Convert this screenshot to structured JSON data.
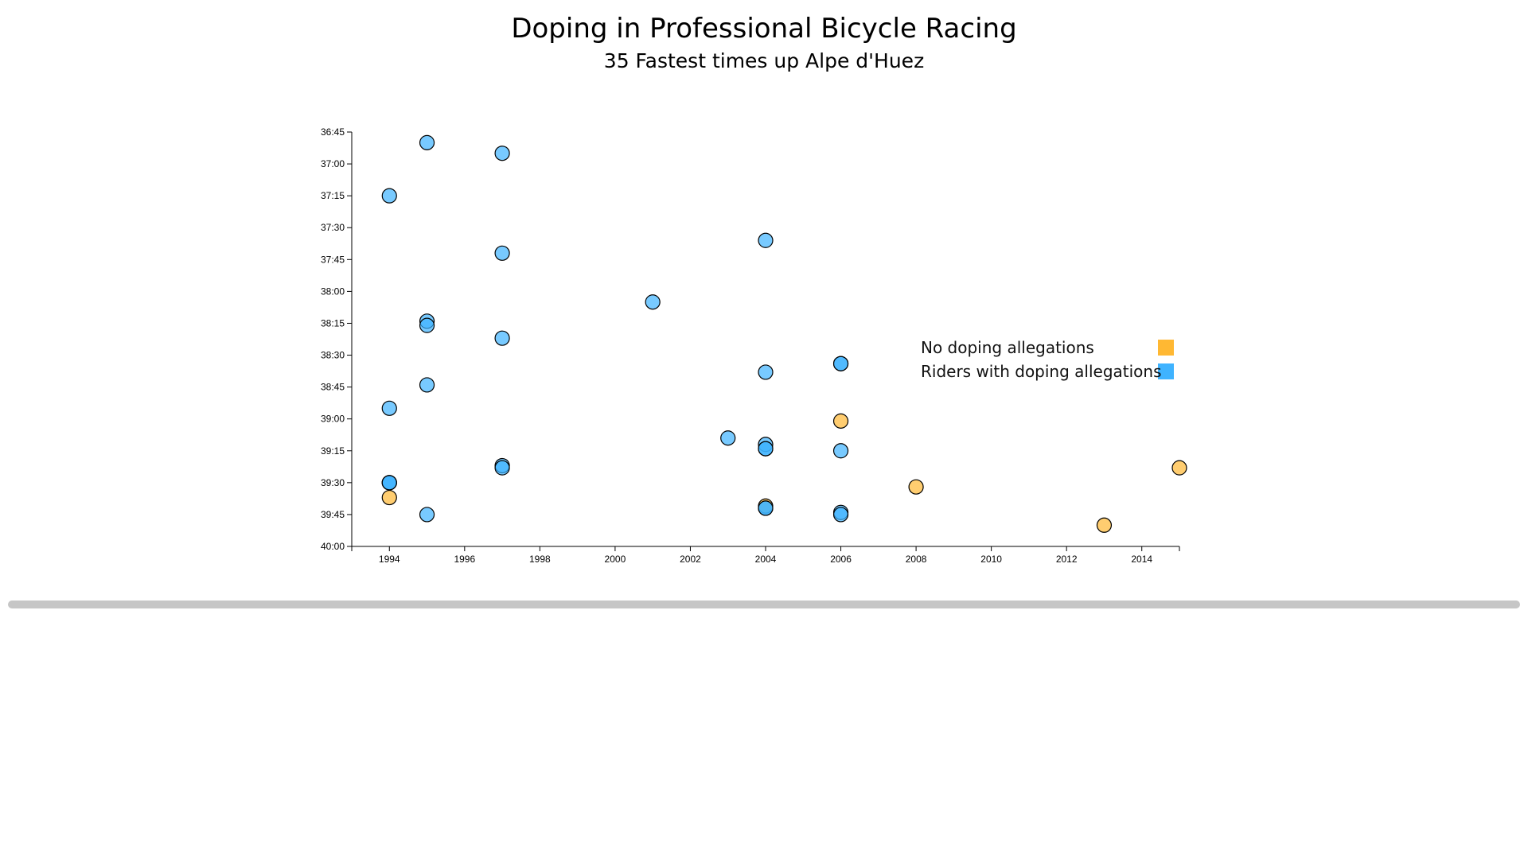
{
  "page": {
    "title": "Doping in Professional Bicycle Racing",
    "subtitle": "35 Fastest times up Alpe d'Huez"
  },
  "colors": {
    "no_doping": "#ffb833",
    "doping": "#3fb3ff",
    "dot_stroke": "#000000"
  },
  "chart_data": {
    "type": "scatter",
    "title": "Doping in Professional Bicycle Racing",
    "subtitle": "35 Fastest times up Alpe d'Huez",
    "xlabel": "",
    "ylabel": "",
    "x_ticks": [
      "1994",
      "1996",
      "1998",
      "2000",
      "2002",
      "2004",
      "2006",
      "2008",
      "2010",
      "2012",
      "2014"
    ],
    "y_ticks": [
      "36:45",
      "37:00",
      "37:15",
      "37:30",
      "37:45",
      "38:00",
      "38:15",
      "38:30",
      "38:45",
      "39:00",
      "39:15",
      "39:30",
      "39:45",
      "40:00"
    ],
    "xlim": [
      1993,
      2015
    ],
    "ylim": [
      "36:45",
      "40:00"
    ],
    "y_reversed": true,
    "legend_placement": "right",
    "legend": [
      {
        "label": "No doping allegations",
        "group": "no_doping"
      },
      {
        "label": "Riders with doping allegations",
        "group": "doping"
      }
    ],
    "series": [
      {
        "name": "No doping allegations",
        "group": "no_doping",
        "points": [
          {
            "x": 1994,
            "y": "39:37"
          },
          {
            "x": 2004,
            "y": "39:41"
          },
          {
            "x": 2006,
            "y": "39:01"
          },
          {
            "x": 2008,
            "y": "39:32"
          },
          {
            "x": 2013,
            "y": "39:50"
          },
          {
            "x": 2015,
            "y": "39:23"
          }
        ]
      },
      {
        "name": "Riders with doping allegations",
        "group": "doping",
        "points": [
          {
            "x": 1995,
            "y": "36:50"
          },
          {
            "x": 1997,
            "y": "36:55"
          },
          {
            "x": 1994,
            "y": "37:15"
          },
          {
            "x": 2004,
            "y": "37:36"
          },
          {
            "x": 1997,
            "y": "37:42"
          },
          {
            "x": 2001,
            "y": "38:05"
          },
          {
            "x": 1995,
            "y": "38:14"
          },
          {
            "x": 1995,
            "y": "38:16"
          },
          {
            "x": 1997,
            "y": "38:22"
          },
          {
            "x": 2006,
            "y": "38:34"
          },
          {
            "x": 2004,
            "y": "38:38"
          },
          {
            "x": 1995,
            "y": "38:44"
          },
          {
            "x": 1994,
            "y": "38:55"
          },
          {
            "x": 2003,
            "y": "39:09"
          },
          {
            "x": 2004,
            "y": "39:12"
          },
          {
            "x": 2004,
            "y": "39:14"
          },
          {
            "x": 2006,
            "y": "39:15"
          },
          {
            "x": 1997,
            "y": "39:22"
          },
          {
            "x": 1997,
            "y": "39:23"
          },
          {
            "x": 1994,
            "y": "39:30"
          },
          {
            "x": 1994,
            "y": "39:30"
          },
          {
            "x": 2004,
            "y": "39:42"
          },
          {
            "x": 2006,
            "y": "39:44"
          },
          {
            "x": 2006,
            "y": "39:45"
          },
          {
            "x": 1995,
            "y": "39:45"
          },
          {
            "x": 2004,
            "y": "39:42"
          },
          {
            "x": 2006,
            "y": "38:34"
          },
          {
            "x": 1994,
            "y": "39:30"
          },
          {
            "x": 2004,
            "y": "39:14"
          }
        ]
      }
    ]
  }
}
